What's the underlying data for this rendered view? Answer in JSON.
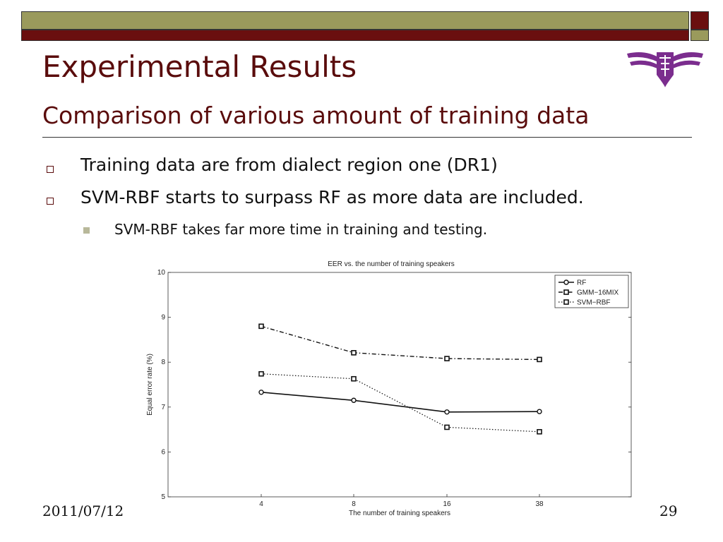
{
  "slide": {
    "title": "Experimental Results",
    "subtitle": "Comparison of various amount of training data",
    "bullets": [
      "Training data are from dialect region one (DR1)",
      "SVM-RBF starts to surpass RF as more data are included."
    ],
    "subbullets": [
      "SVM-RBF takes far more time in training and testing."
    ],
    "footer_date": "2011/07/12",
    "page_number": "29",
    "colors": {
      "accent": "#5a0c0c",
      "olive": "#9a9a5c",
      "logo": "#7b2d8e"
    },
    "logo_icon": "university-emblem-icon"
  },
  "chart_data": {
    "type": "line",
    "title": "EER vs. the number of training speakers",
    "xlabel": "The number of training speakers",
    "ylabel": "Equal error rate (%)",
    "categories": [
      "4",
      "8",
      "16",
      "38"
    ],
    "yticks": [
      "5",
      "6",
      "7",
      "8",
      "9",
      "10"
    ],
    "ylim": [
      5,
      10
    ],
    "legend_position": "top-right",
    "grid": false,
    "series": [
      {
        "name": "RF",
        "values": [
          7.33,
          7.15,
          6.89,
          6.9
        ],
        "marker": "circle",
        "style": "solid"
      },
      {
        "name": "GMM−16MIX",
        "values": [
          8.8,
          8.21,
          8.08,
          8.06
        ],
        "marker": "square",
        "style": "dashdot"
      },
      {
        "name": "SVM−RBF",
        "values": [
          7.74,
          7.63,
          6.55,
          6.45
        ],
        "marker": "square",
        "style": "dotted"
      }
    ]
  }
}
